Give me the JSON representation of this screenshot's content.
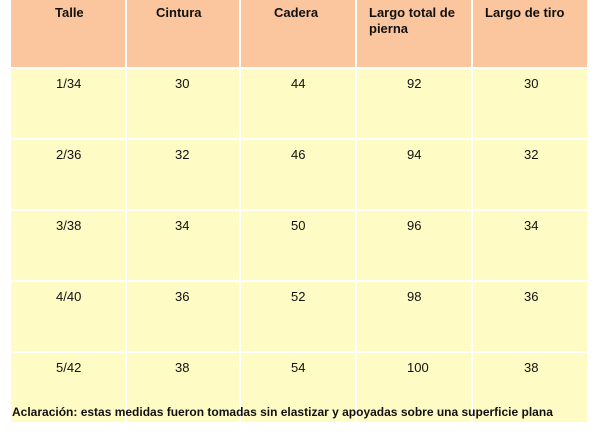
{
  "table": {
    "headers": [
      "Talle",
      "Cintura",
      "Cadera",
      "Largo total de pierna",
      "Largo de tiro"
    ],
    "rows": [
      [
        "1/34",
        "30",
        "44",
        "92",
        "30"
      ],
      [
        "2/36",
        "32",
        "46",
        "94",
        "32"
      ],
      [
        "3/38",
        "34",
        "50",
        "96",
        "34"
      ],
      [
        "4/40",
        "36",
        "52",
        "98",
        "36"
      ],
      [
        "5/42",
        "38",
        "54",
        "100",
        "38"
      ]
    ]
  },
  "note": "Aclaración: estas medidas fueron tomadas sin elastizar y apoyadas sobre una superficie plana",
  "colors": {
    "header_bg": "#fbc59d",
    "cell_bg": "#fffbc4"
  }
}
